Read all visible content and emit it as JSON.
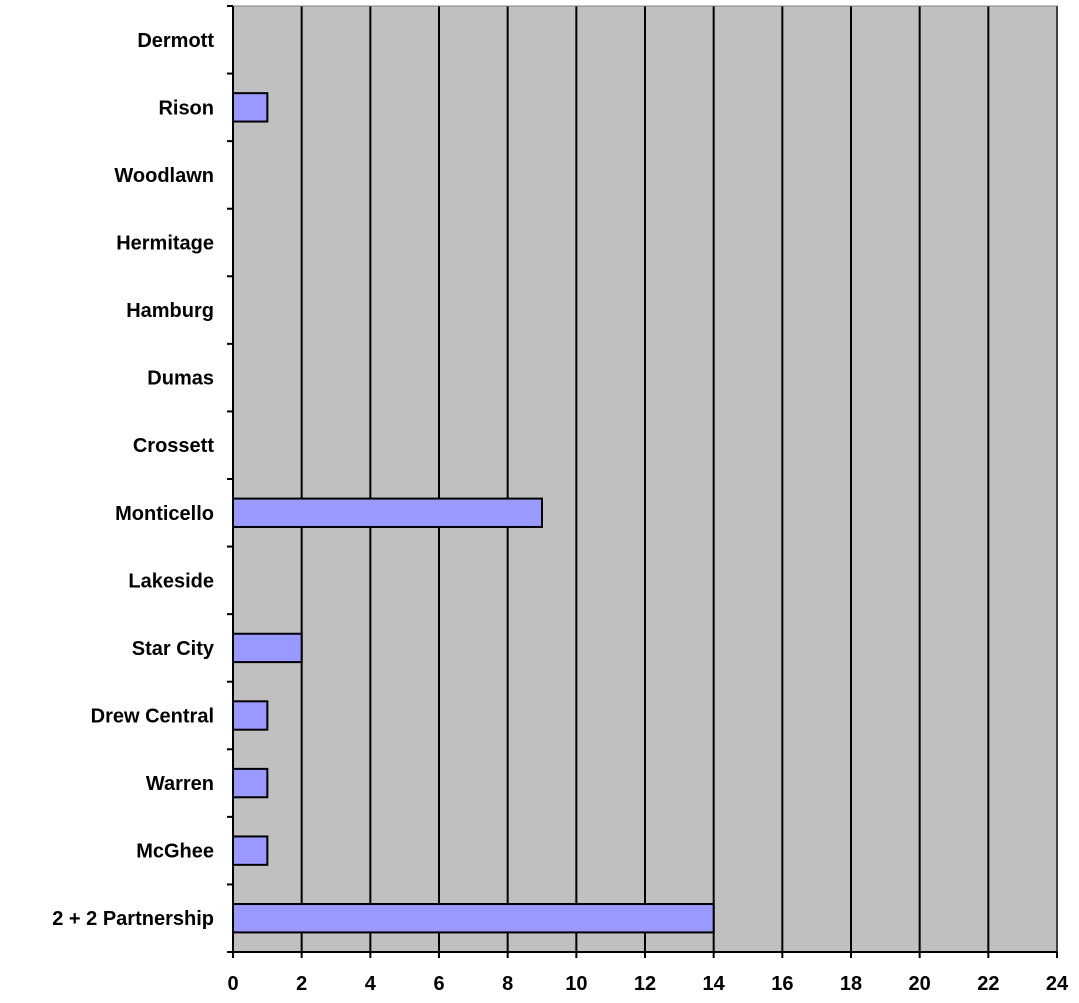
{
  "chart_data": {
    "type": "bar",
    "orientation": "horizontal",
    "categories": [
      "Dermott",
      "Rison",
      "Woodlawn",
      "Hermitage",
      "Hamburg",
      "Dumas",
      "Crossett",
      "Monticello",
      "Lakeside",
      "Star City",
      "Drew Central",
      "Warren",
      "McGhee",
      "2 + 2 Partnership"
    ],
    "values": [
      0,
      1,
      0,
      0,
      0,
      0,
      0,
      9,
      0,
      2,
      1,
      1,
      1,
      14
    ],
    "xlim": [
      0,
      24
    ],
    "xticks": [
      0,
      2,
      4,
      6,
      8,
      10,
      12,
      14,
      16,
      18,
      20,
      22,
      24
    ],
    "grid": "vertical",
    "legend": "none",
    "colors": {
      "bar": "#9999ff",
      "plot_background": "#c0c0c0",
      "gridline": "#000000"
    }
  }
}
